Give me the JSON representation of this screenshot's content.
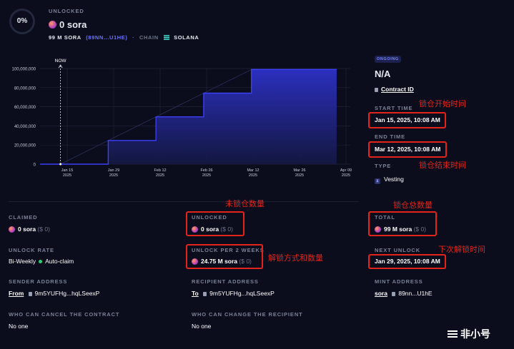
{
  "header": {
    "progress_pct": 0,
    "progress_label": "0%",
    "status_label": "UNLOCKED",
    "amount": "0 sora",
    "total_line": "99 M SORA",
    "contract_short": "(89NN...U1HE)",
    "chain_label": "CHAIN",
    "chain_name": "SOLANA"
  },
  "chart_data": {
    "type": "area",
    "title": "",
    "xlabel": "",
    "ylabel": "",
    "now_label": "NOW",
    "y_ticks": [
      "100,000,000",
      "80,000,000",
      "60,000,000",
      "40,000,000",
      "20,000,000",
      "0"
    ],
    "x_ticks": [
      {
        "date": "Jan 15",
        "year": "2025"
      },
      {
        "date": "Jan 29",
        "year": "2025"
      },
      {
        "date": "Feb 12",
        "year": "2025"
      },
      {
        "date": "Feb 26",
        "year": "2025"
      },
      {
        "date": "Mar 12",
        "year": "2025"
      },
      {
        "date": "Mar 26",
        "year": "2025"
      },
      {
        "date": "Apr 09",
        "year": "2025"
      }
    ],
    "ylim": [
      0,
      100000000
    ],
    "xlim": [
      "2025-01-09",
      "2025-04-10"
    ],
    "now_date": "2025-01-15",
    "series": [
      {
        "values": [
          {
            "x": "2025-01-09",
            "y": 0
          },
          {
            "x": "2025-01-29",
            "y": 0
          },
          {
            "x": "2025-01-29",
            "y": 24750000
          },
          {
            "x": "2025-02-12",
            "y": 24750000
          },
          {
            "x": "2025-02-12",
            "y": 49500000
          },
          {
            "x": "2025-02-26",
            "y": 49500000
          },
          {
            "x": "2025-02-26",
            "y": 74250000
          },
          {
            "x": "2025-03-12",
            "y": 74250000
          },
          {
            "x": "2025-03-12",
            "y": 99000000
          },
          {
            "x": "2025-04-06",
            "y": 99000000
          }
        ]
      }
    ],
    "grid": true
  },
  "side": {
    "status_chip": "ONGOING",
    "title": "N/A",
    "contract_link": "Contract ID",
    "start_label": "START TIME",
    "start_value": "Jan 15, 2025, 10:08 AM",
    "end_label": "END TIME",
    "end_value": "Mar 12, 2025, 10:08 AM",
    "type_label": "TYPE",
    "type_value": "Vesting"
  },
  "details": {
    "claimed_label": "CLAIMED",
    "claimed_value": "0 sora",
    "claimed_usd": "($ 0)",
    "unlocked_label": "UNLOCKED",
    "unlocked_value": "0 sora",
    "unlocked_usd": "($ 0)",
    "total_label": "TOTAL",
    "total_value": "99 M sora",
    "total_usd": "($ 0)",
    "rate_label": "UNLOCK RATE",
    "rate_value": "Bi-Weekly",
    "autoclaim": "Auto-claim",
    "per_label": "UNLOCK PER 2 WEEKS",
    "per_value": "24.75 M sora",
    "per_usd": "($ 0)",
    "next_label": "NEXT UNLOCK",
    "next_value": "Jan 29, 2025, 10:08 AM",
    "sender_label": "SENDER ADDRESS",
    "sender_prefix": "From",
    "sender_addr": "9m5YUFHg...hqLSeexP",
    "recipient_label": "RECIPIENT ADDRESS",
    "recipient_prefix": "To",
    "recipient_addr": "9m5YUFHg...hqLSeexP",
    "mint_label": "MINT ADDRESS",
    "mint_prefix": "sora",
    "mint_addr": "89nn...U1hE",
    "cancel_label": "WHO CAN CANCEL THE CONTRACT",
    "cancel_value": "No one",
    "change_label": "WHO CAN CHANGE THE RECIPIENT",
    "change_value": "No one"
  },
  "annotations": {
    "start": "锁仓开始时间",
    "end": "锁仓结束时间",
    "unlocked": "未锁仓数量",
    "total": "锁仓总数量",
    "method": "解锁方式和数量",
    "next": "下次解锁时间"
  },
  "watermark": "非小号",
  "colors": {
    "accent": "#3b3ff5",
    "annotation": "#e3241b",
    "bg": "#0b0d1c"
  }
}
